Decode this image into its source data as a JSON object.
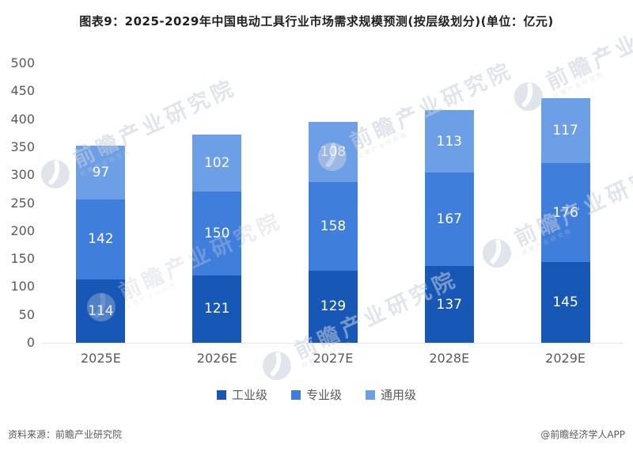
{
  "title": "图表9：2025-2029年中国电动工具行业市场需求规模预测(按层级划分)(单位：亿元)",
  "watermark": {
    "text": "前瞻产业研究院",
    "logo_name": "qianzhan-logo-icon"
  },
  "footer": {
    "source": "资料来源：前瞻产业研究院",
    "copyright": "@前瞻经济学人APP"
  },
  "chart_data": {
    "type": "bar",
    "stacked": true,
    "title": "图表9：2025-2029年中国电动工具行业市场需求规模预测(按层级划分)(单位：亿元)",
    "categories": [
      "2025E",
      "2026E",
      "2027E",
      "2028E",
      "2029E"
    ],
    "series": [
      {
        "name": "工业级",
        "color": "#1758B7",
        "values": [
          114,
          121,
          129,
          137,
          145
        ]
      },
      {
        "name": "专业级",
        "color": "#3F7EDB",
        "values": [
          142,
          150,
          158,
          167,
          176
        ]
      },
      {
        "name": "通用级",
        "color": "#6C9FE5",
        "values": [
          97,
          102,
          108,
          113,
          117
        ]
      }
    ],
    "totals": [
      353,
      373,
      395,
      417,
      438
    ],
    "xlabel": "",
    "ylabel": "",
    "unit": "亿元",
    "ylim": [
      0,
      500
    ],
    "ytick_step": 50,
    "yticks": [
      0,
      50,
      100,
      150,
      200,
      250,
      300,
      350,
      400,
      450,
      500
    ],
    "grid": false,
    "legend_position": "bottom",
    "value_labels": "inside-white",
    "tick_color": "#595959",
    "axis_line_color": "#e2e2e2"
  }
}
